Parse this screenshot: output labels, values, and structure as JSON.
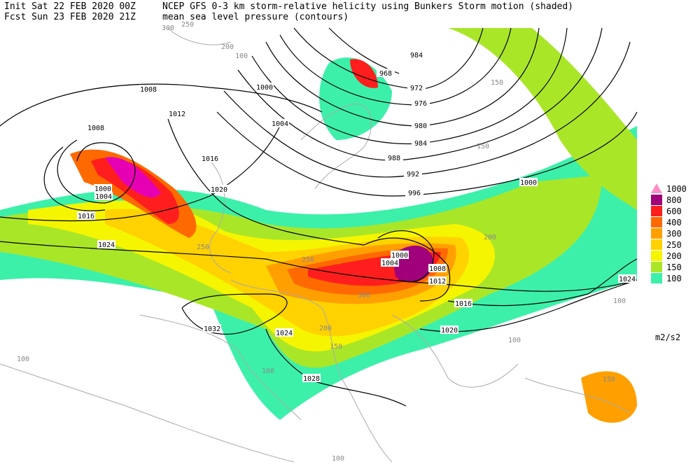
{
  "header": {
    "init": "Init  Sat 22 FEB 2020 00Z",
    "fcst": "Fcst Sun 23 FEB 2020 21Z",
    "title": "NCEP GFS 0-3 km storm-relative helicity using Bunkers Storm motion (shaded)",
    "subtitle": "mean sea level pressure (contours)"
  },
  "legend": {
    "unit": "m2/s2",
    "levels": [
      {
        "label": 1000,
        "color": "#ff8cc8"
      },
      {
        "label": 800,
        "color": "#a0007a"
      },
      {
        "label": 600,
        "color": "#ff1e1e"
      },
      {
        "label": 400,
        "color": "#ff6a00"
      },
      {
        "label": 300,
        "color": "#ffa000"
      },
      {
        "label": 250,
        "color": "#ffd200"
      },
      {
        "label": 200,
        "color": "#f5f500"
      },
      {
        "label": 150,
        "color": "#aae628"
      },
      {
        "label": 100,
        "color": "#3cf0aa"
      }
    ]
  },
  "contour_labels": [
    1008,
    1000,
    1012,
    1008,
    1004,
    1016,
    1020,
    1000,
    1004,
    1016,
    1024,
    984,
    968,
    972,
    976,
    980,
    984,
    988,
    992,
    996,
    1000,
    1000,
    1004,
    1008,
    1012,
    1016,
    1020,
    1024,
    1032,
    1024,
    1028
  ],
  "shade_labels": [
    300,
    250,
    200,
    100,
    150,
    150,
    250,
    250,
    200,
    300,
    200,
    100,
    100,
    150,
    100,
    100,
    150,
    100
  ]
}
